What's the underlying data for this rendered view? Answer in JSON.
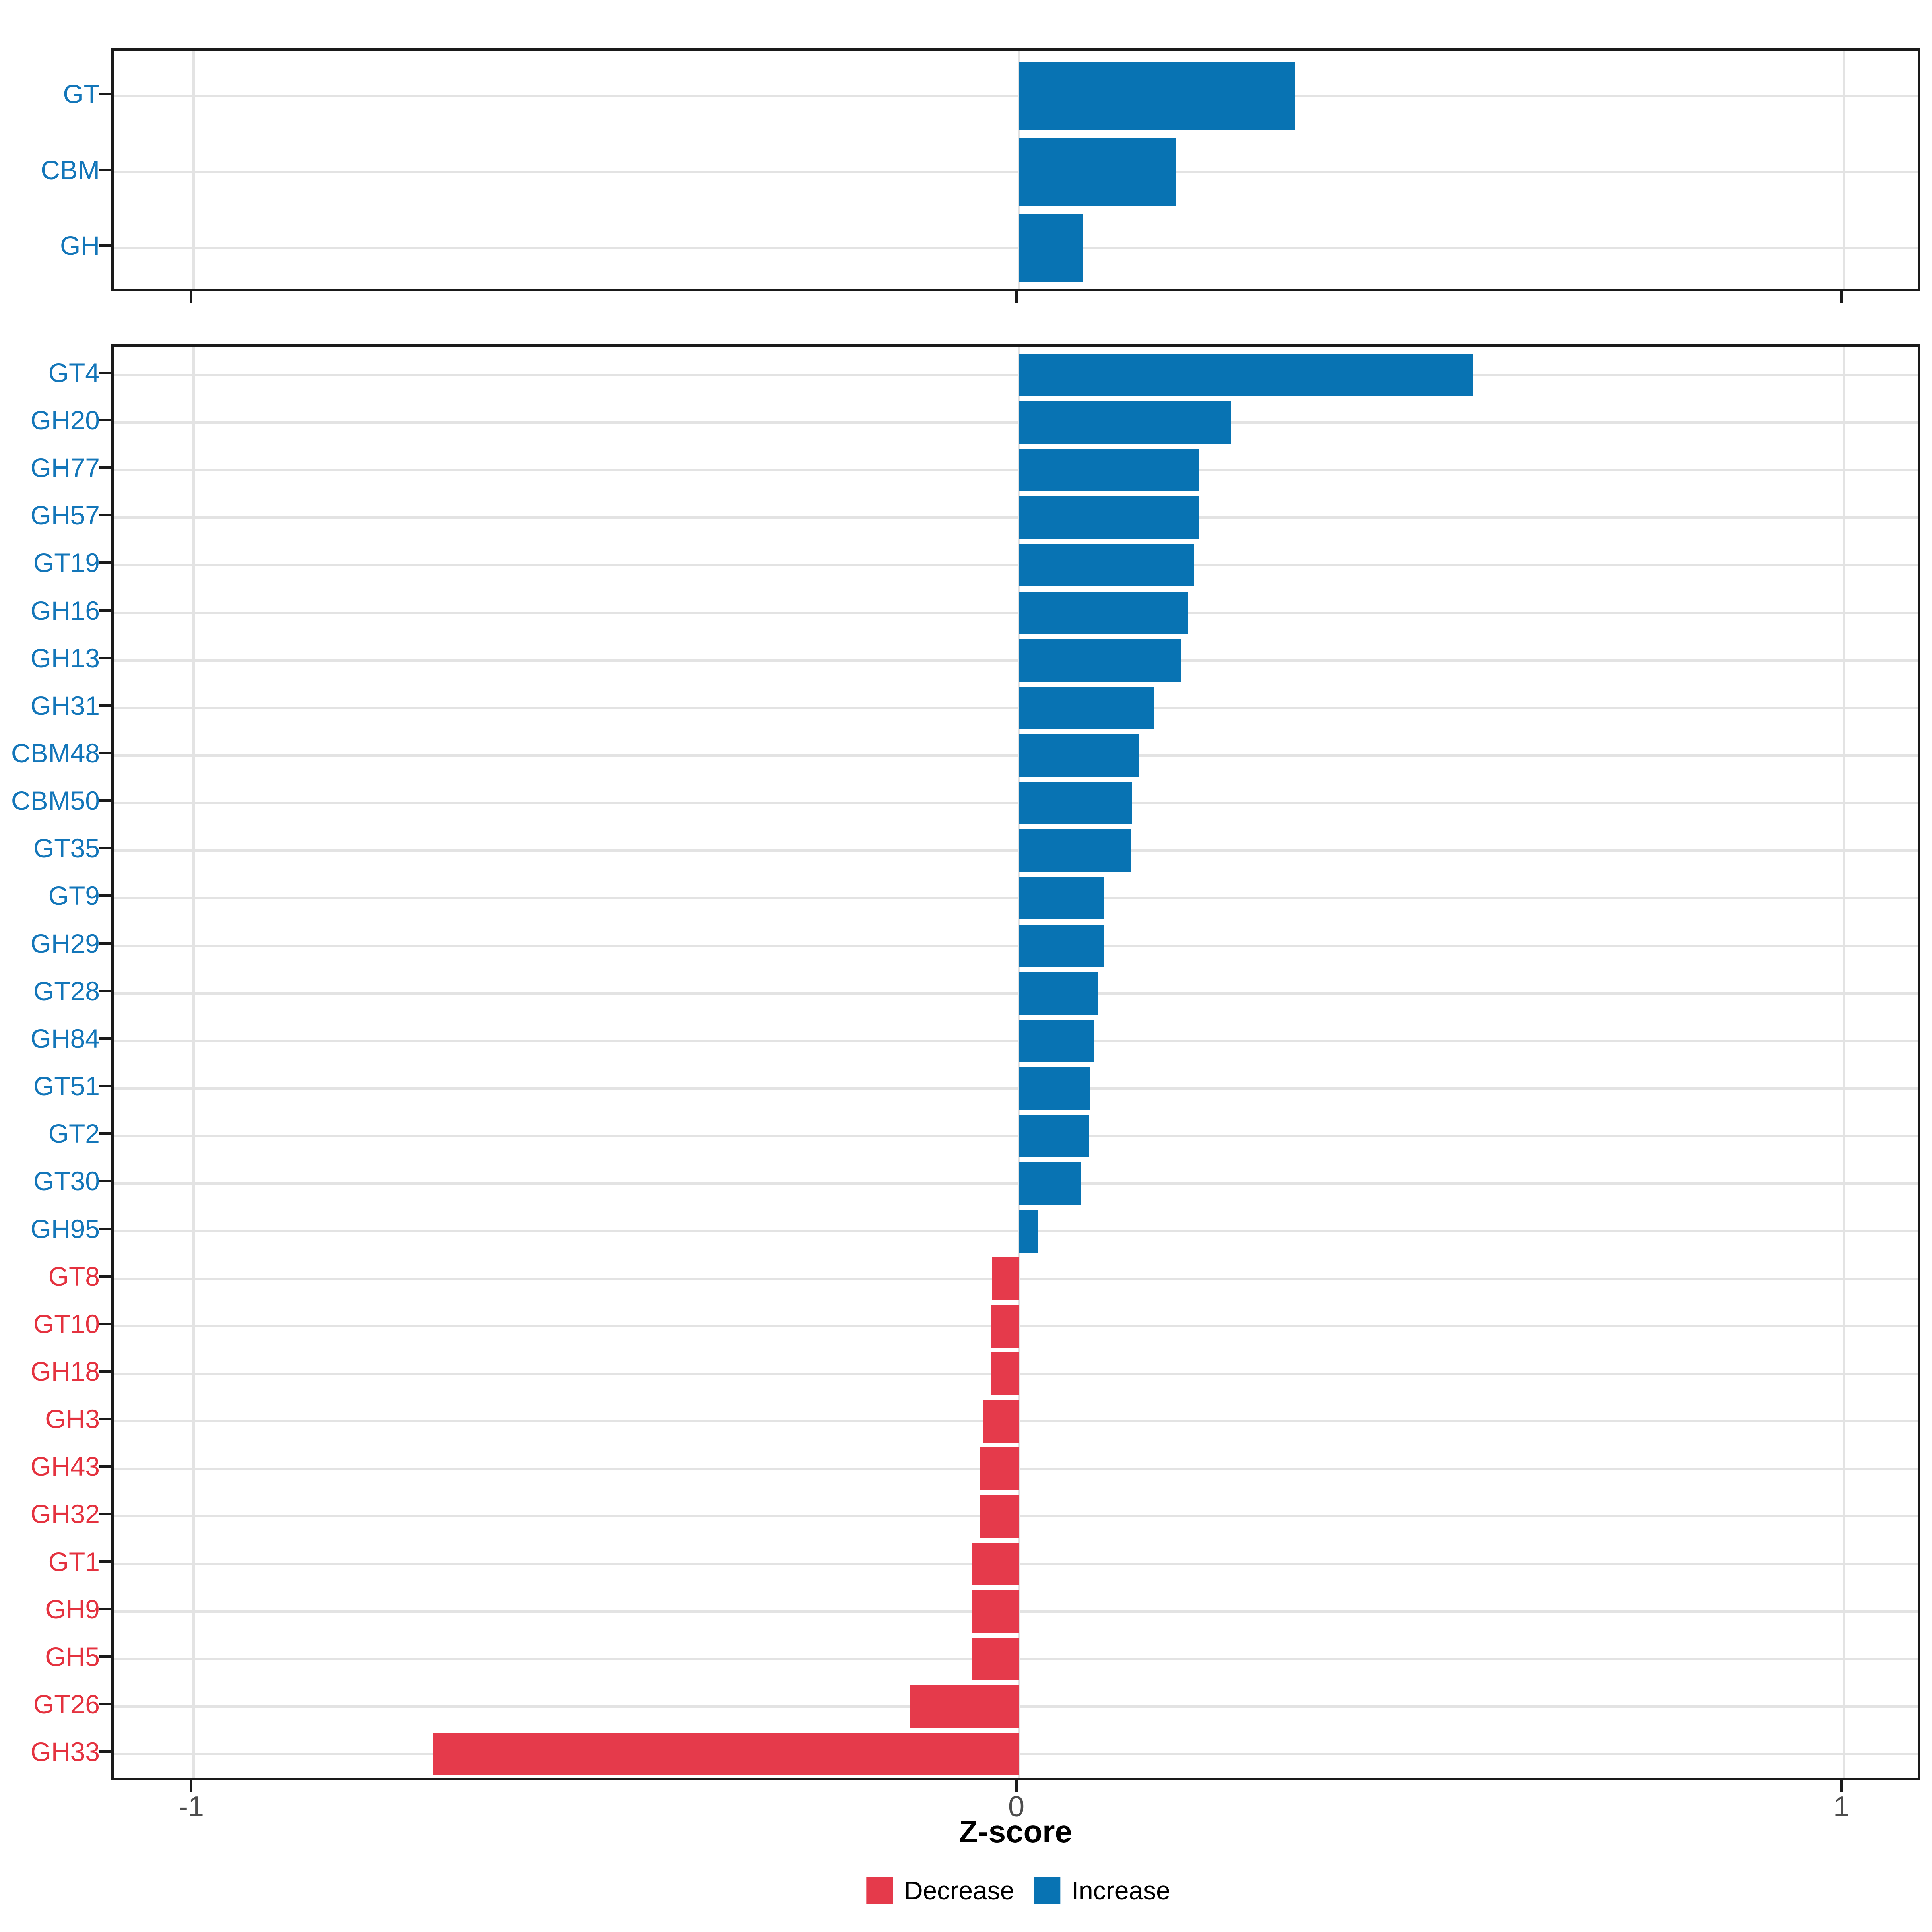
{
  "figure": {
    "background": "#ffffff"
  },
  "colors": {
    "increase": "#0873B3",
    "decrease": "#E53A4B",
    "label_increase": "#1376B9",
    "label_decrease": "#E4323F",
    "grid": "#e3e3e3",
    "panel_border": "#1a1a1a",
    "tick": "#1a1a1a",
    "axis_text": "#4d4d4d"
  },
  "axis": {
    "title": "Z-score",
    "ticks": [
      {
        "label": "-1",
        "value": -1
      },
      {
        "label": "0",
        "value": 0
      },
      {
        "label": "1",
        "value": 1
      }
    ],
    "range": [
      -1.097,
      1.097
    ]
  },
  "legend": {
    "position": "bottom",
    "items": [
      {
        "label": "Decrease",
        "key": "decrease",
        "color": "#E53A4B"
      },
      {
        "label": "Increase",
        "key": "increase",
        "color": "#0873B3"
      }
    ]
  },
  "chart_data": [
    {
      "type": "bar",
      "orientation": "horizontal",
      "panel": "top-summary",
      "title": "",
      "xlabel": "Z-score",
      "ylabel": "",
      "xlim": [
        -1.097,
        1.097
      ],
      "grid": true,
      "categories": [
        "GT",
        "CBM",
        "GH"
      ],
      "values": [
        0.335,
        0.19,
        0.078
      ],
      "groups": [
        "Increase",
        "Increase",
        "Increase"
      ]
    },
    {
      "type": "bar",
      "orientation": "horizontal",
      "panel": "bottom-families",
      "title": "",
      "xlabel": "Z-score",
      "ylabel": "",
      "xlim": [
        -1.097,
        1.097
      ],
      "grid": true,
      "categories": [
        "GT4",
        "GH20",
        "GH77",
        "GH57",
        "GT19",
        "GH16",
        "GH13",
        "GH31",
        "CBM48",
        "CBM50",
        "GT35",
        "GT9",
        "GH29",
        "GT28",
        "GH84",
        "GT51",
        "GT2",
        "GT30",
        "GH95",
        "GT8",
        "GT10",
        "GH18",
        "GH3",
        "GH43",
        "GH32",
        "GT1",
        "GH9",
        "GH5",
        "GT26",
        "GH33"
      ],
      "values": [
        0.55,
        0.257,
        0.219,
        0.218,
        0.212,
        0.205,
        0.197,
        0.164,
        0.146,
        0.137,
        0.136,
        0.104,
        0.103,
        0.096,
        0.091,
        0.087,
        0.085,
        0.075,
        0.024,
        -0.032,
        -0.033,
        -0.034,
        -0.044,
        -0.047,
        -0.047,
        -0.057,
        -0.056,
        -0.057,
        -0.131,
        -0.71
      ],
      "groups": [
        "Increase",
        "Increase",
        "Increase",
        "Increase",
        "Increase",
        "Increase",
        "Increase",
        "Increase",
        "Increase",
        "Increase",
        "Increase",
        "Increase",
        "Increase",
        "Increase",
        "Increase",
        "Increase",
        "Increase",
        "Increase",
        "Increase",
        "Decrease",
        "Decrease",
        "Decrease",
        "Decrease",
        "Decrease",
        "Decrease",
        "Decrease",
        "Decrease",
        "Decrease",
        "Decrease",
        "Decrease"
      ]
    }
  ]
}
